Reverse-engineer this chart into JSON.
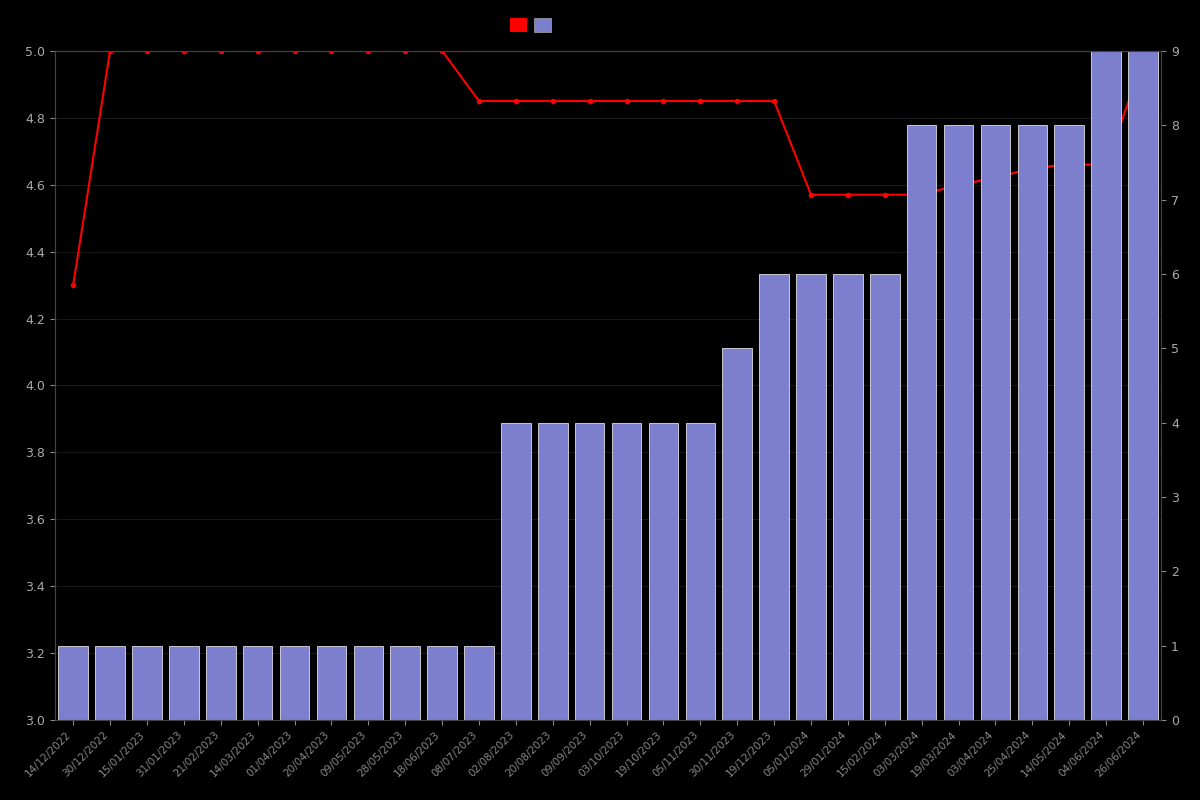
{
  "background_color": "#000000",
  "bar_color": "#7b7fcd",
  "bar_edge_color": "#ffffff",
  "line_color": "#ff0000",
  "line_marker": "o",
  "line_marker_size": 3,
  "line_width": 1.5,
  "left_ylim": [
    3.0,
    5.0
  ],
  "right_ylim": [
    0,
    9
  ],
  "left_yticks": [
    3.0,
    3.2,
    3.4,
    3.6,
    3.8,
    4.0,
    4.2,
    4.4,
    4.6,
    4.8,
    5.0
  ],
  "right_yticks": [
    0,
    1,
    2,
    3,
    4,
    5,
    6,
    7,
    8,
    9
  ],
  "tick_color": "#888888",
  "text_color": "#aaaaaa",
  "grid_color": "#222222",
  "dates": [
    "14/12/2022",
    "30/12/2022",
    "15/01/2023",
    "31/01/2023",
    "21/02/2023",
    "14/03/2023",
    "01/04/2023",
    "20/04/2023",
    "09/05/2023",
    "28/05/2023",
    "18/06/2023",
    "08/07/2023",
    "02/08/2023",
    "20/08/2023",
    "09/09/2023",
    "03/10/2023",
    "19/10/2023",
    "05/11/2023",
    "30/11/2023",
    "19/12/2023",
    "05/01/2024",
    "29/01/2024",
    "15/02/2024",
    "03/03/2024",
    "19/03/2024",
    "03/04/2024",
    "25/04/2024",
    "14/05/2024",
    "04/06/2024",
    "26/06/2024"
  ],
  "bar_values": [
    1,
    1,
    1,
    1,
    1,
    1,
    1,
    1,
    1,
    1,
    1,
    1,
    4,
    4,
    4,
    4,
    4,
    4,
    5,
    6,
    6,
    6,
    6,
    8,
    8,
    8,
    8,
    8,
    9,
    9
  ],
  "ratings": [
    4.3,
    5.0,
    5.0,
    5.0,
    5.0,
    5.0,
    5.0,
    5.0,
    5.0,
    5.0,
    5.0,
    4.85,
    4.85,
    4.85,
    4.85,
    4.85,
    4.85,
    4.85,
    4.85,
    4.85,
    4.57,
    4.57,
    4.57,
    4.57,
    4.6,
    4.62,
    4.65,
    4.66,
    4.66,
    4.97
  ],
  "figsize": [
    12.0,
    8.0
  ],
  "dpi": 100
}
